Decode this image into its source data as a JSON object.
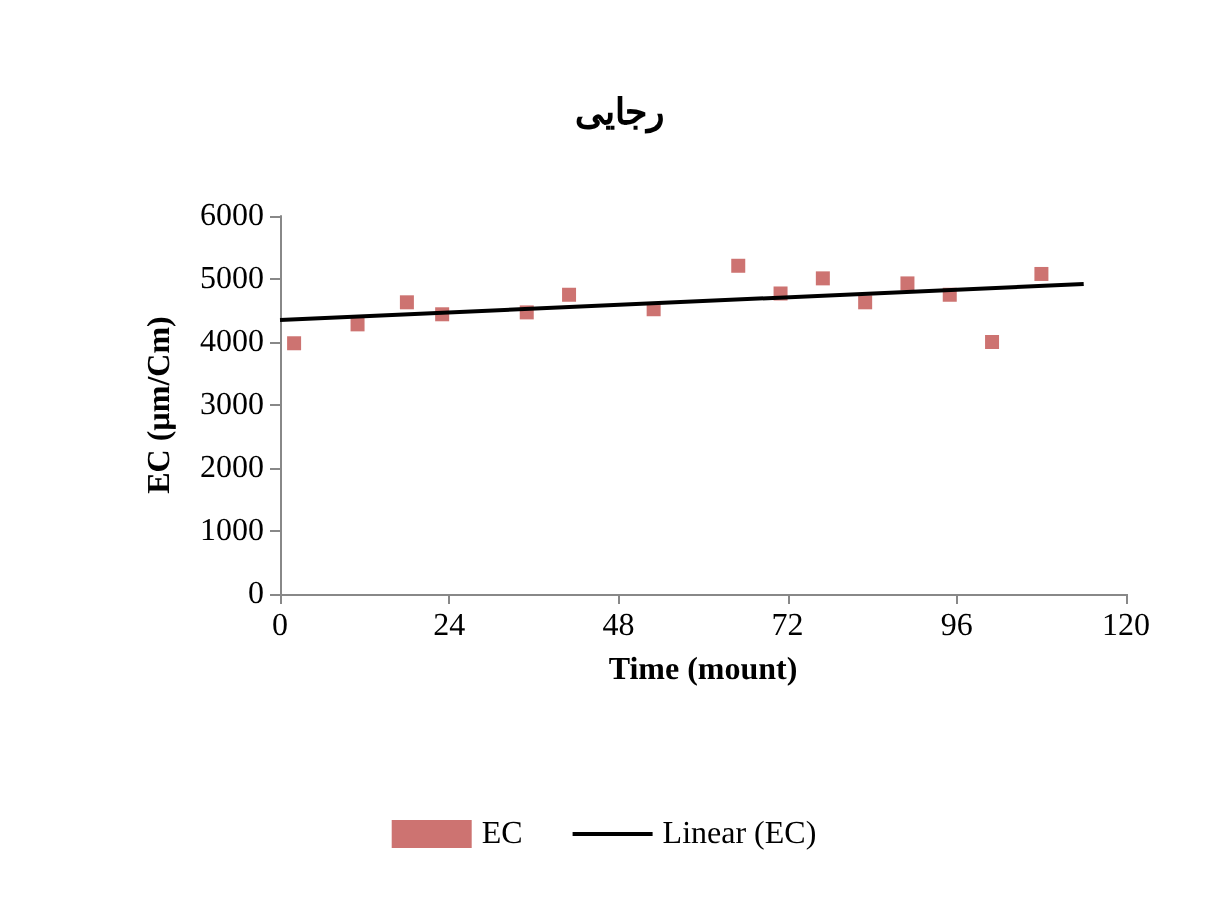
{
  "chart_data": {
    "type": "scatter",
    "title": "رجایی",
    "xlabel": "Time (mount)",
    "ylabel": "EC (µm/Cm)",
    "xlim": [
      0,
      120
    ],
    "xticks": [
      0,
      24,
      48,
      72,
      96,
      120
    ],
    "ylim": [
      0,
      6000
    ],
    "yticks": [
      0,
      1000,
      2000,
      3000,
      4000,
      5000,
      6000
    ],
    "grid": false,
    "legend": "bottom",
    "marker": "square",
    "series": [
      {
        "name": "EC",
        "color": "#c0504d",
        "x": [
          2,
          11,
          18,
          23,
          35,
          41,
          53,
          65,
          71,
          77,
          83,
          89,
          95,
          101,
          108
        ],
        "values": [
          3980,
          4280,
          4630,
          4440,
          4470,
          4750,
          4520,
          5210,
          4770,
          5010,
          4630,
          4930,
          4750,
          4000,
          5080
        ]
      },
      {
        "name": "Linear (EC)",
        "type": "line",
        "color": "#000000",
        "marker": "none",
        "line_style": "solid",
        "x": [
          0,
          114
        ],
        "values": [
          4350,
          4920
        ]
      }
    ]
  }
}
